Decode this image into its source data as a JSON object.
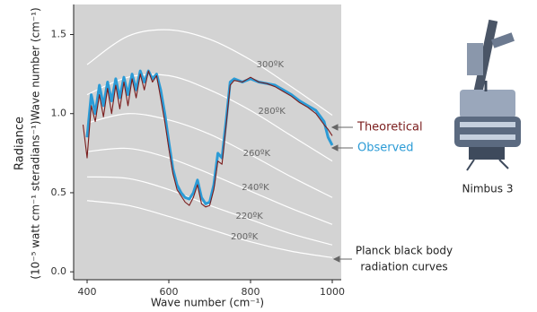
{
  "chart_data": {
    "type": "line",
    "y_label": [
      "Radiance",
      "(10⁻⁵ watt cm⁻¹ steradians⁻¹)Wave number (cm⁻¹)"
    ],
    "x_label": "Wave number (cm⁻¹)",
    "xlim": [
      367,
      1022
    ],
    "ylim": [
      -0.05,
      1.69
    ],
    "xticks": [
      400,
      600,
      800,
      1000
    ],
    "yticks": [
      {
        "value": 0,
        "label": "0.0"
      },
      0.5,
      {
        "value": 1,
        "label": "1.0"
      },
      1.5
    ],
    "x": [
      390,
      400,
      410,
      420,
      430,
      440,
      450,
      460,
      470,
      480,
      490,
      500,
      510,
      520,
      530,
      540,
      550,
      560,
      570,
      580,
      590,
      600,
      610,
      620,
      630,
      640,
      650,
      660,
      670,
      680,
      690,
      700,
      710,
      720,
      730,
      740,
      750,
      760,
      780,
      800,
      820,
      840,
      860,
      880,
      900,
      920,
      940,
      960,
      980,
      990,
      1000
    ],
    "series": [
      {
        "name": "Observed",
        "color": "#2b9bd6",
        "values": [
          null,
          0.85,
          1.12,
          1.0,
          1.18,
          1.05,
          1.2,
          1.08,
          1.22,
          1.1,
          1.23,
          1.12,
          1.25,
          1.15,
          1.27,
          1.2,
          1.27,
          1.22,
          1.25,
          1.15,
          1.0,
          0.82,
          0.65,
          0.55,
          0.5,
          0.47,
          0.46,
          0.5,
          0.58,
          0.47,
          0.43,
          0.44,
          0.55,
          0.75,
          0.72,
          0.95,
          1.2,
          1.22,
          1.2,
          1.22,
          1.2,
          1.19,
          1.18,
          1.15,
          1.12,
          1.08,
          1.05,
          1.02,
          0.95,
          0.85,
          0.8
        ]
      },
      {
        "name": "Theoretical",
        "color": "#7a1c1c",
        "values": [
          0.93,
          0.72,
          1.05,
          0.95,
          1.12,
          0.98,
          1.16,
          1.0,
          1.18,
          1.03,
          1.2,
          1.05,
          1.22,
          1.1,
          1.25,
          1.15,
          1.27,
          1.2,
          1.24,
          1.1,
          0.95,
          0.78,
          0.62,
          0.52,
          0.48,
          0.44,
          0.42,
          0.47,
          0.55,
          0.43,
          0.41,
          0.42,
          0.52,
          0.7,
          0.68,
          0.92,
          1.18,
          1.21,
          1.2,
          1.23,
          1.2,
          1.19,
          1.17,
          1.14,
          1.11,
          1.07,
          1.04,
          1.0,
          0.93,
          0.9,
          0.86
        ]
      }
    ],
    "planck": {
      "color": "#ffffff",
      "x": [
        400,
        500,
        600,
        700,
        800,
        900,
        1000
      ],
      "series": [
        {
          "name": "300ºK",
          "values": [
            1.31,
            1.49,
            1.53,
            1.47,
            1.34,
            1.17,
            0.99
          ]
        },
        {
          "name": "280ºK",
          "values": [
            1.12,
            1.23,
            1.24,
            1.15,
            1.02,
            0.86,
            0.7
          ]
        },
        {
          "name": "260ºK",
          "values": [
            0.94,
            1.0,
            0.96,
            0.87,
            0.74,
            0.6,
            0.47
          ]
        },
        {
          "name": "240ºK",
          "values": [
            0.76,
            0.78,
            0.72,
            0.62,
            0.51,
            0.4,
            0.3
          ]
        },
        {
          "name": "220ºK",
          "values": [
            0.6,
            0.59,
            0.52,
            0.42,
            0.33,
            0.24,
            0.17
          ]
        },
        {
          "name": "200ºK",
          "values": [
            0.45,
            0.42,
            0.35,
            0.27,
            0.19,
            0.13,
            0.09
          ]
        }
      ]
    },
    "annotations": [
      "Planck black body",
      "radiation curves"
    ],
    "image_caption": "Nimbus 3"
  }
}
